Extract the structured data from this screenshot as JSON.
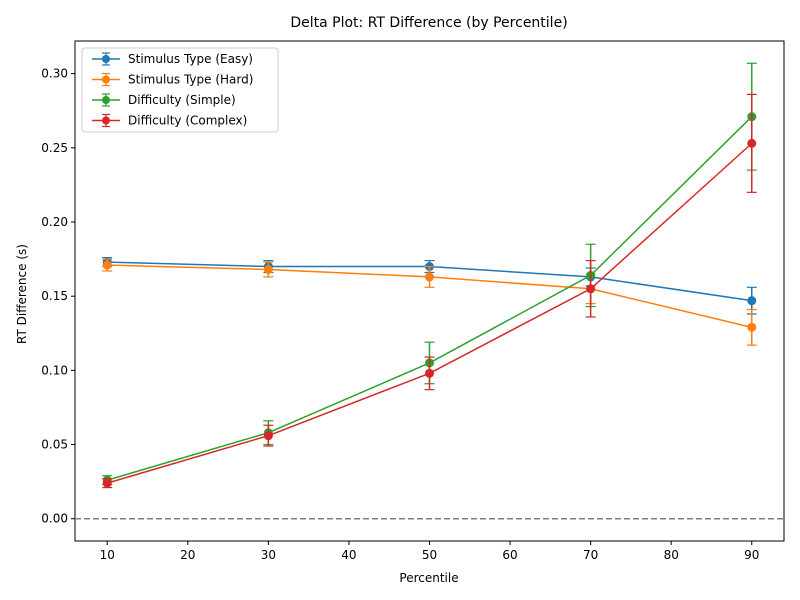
{
  "chart_data": {
    "type": "line",
    "title": "Delta Plot: RT Difference (by Percentile)",
    "xlabel": "Percentile",
    "ylabel": "RT Difference (s)",
    "x": [
      10,
      30,
      50,
      70,
      90
    ],
    "xlim": [
      6,
      94
    ],
    "ylim": [
      -0.015,
      0.322
    ],
    "xticks": [
      10,
      20,
      30,
      40,
      50,
      60,
      70,
      80,
      90
    ],
    "yticks": [
      0.0,
      0.05,
      0.1,
      0.15,
      0.2,
      0.25,
      0.3
    ],
    "reference_line": {
      "y": 0,
      "style": "dashed",
      "color": "#808080"
    },
    "legend_position": "upper-left",
    "grid": false,
    "series": [
      {
        "name": "Stimulus Type (Easy)",
        "color": "#1f77b4",
        "values": [
          0.173,
          0.17,
          0.17,
          0.163,
          0.147
        ],
        "errors": [
          0.003,
          0.004,
          0.004,
          0.006,
          0.009
        ]
      },
      {
        "name": "Stimulus Type (Hard)",
        "color": "#ff7f0e",
        "values": [
          0.171,
          0.168,
          0.163,
          0.155,
          0.129
        ],
        "errors": [
          0.004,
          0.005,
          0.007,
          0.01,
          0.012
        ]
      },
      {
        "name": "Difficulty (Simple)",
        "color": "#2ca02c",
        "values": [
          0.026,
          0.058,
          0.105,
          0.164,
          0.271
        ],
        "errors": [
          0.003,
          0.008,
          0.014,
          0.021,
          0.036
        ]
      },
      {
        "name": "Difficulty (Complex)",
        "color": "#d62728",
        "values": [
          0.024,
          0.056,
          0.098,
          0.155,
          0.253
        ],
        "errors": [
          0.003,
          0.007,
          0.011,
          0.019,
          0.033
        ]
      }
    ]
  }
}
